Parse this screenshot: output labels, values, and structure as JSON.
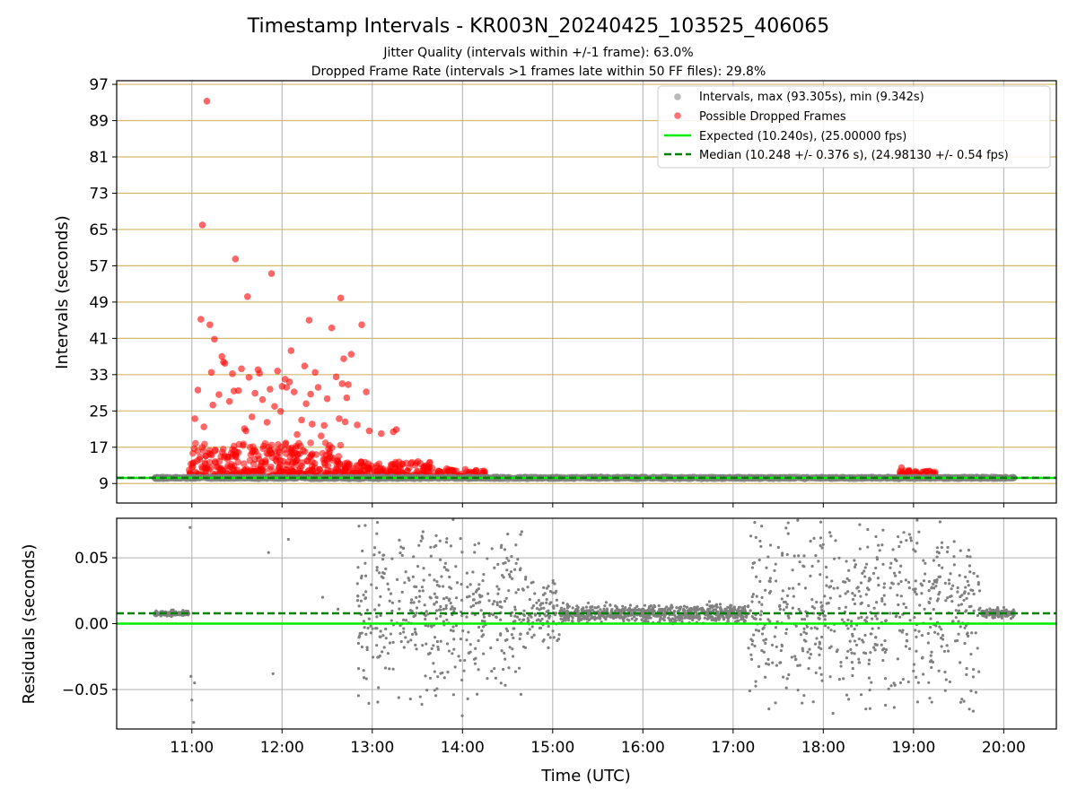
{
  "title": "Timestamp Intervals - KR003N_20240425_103525_406065",
  "subtitle_1": "Jitter Quality (intervals within +/-1 frame): 63.0%",
  "subtitle_2": "Dropped Frame Rate (intervals >1 frames late within 50 FF files): 29.8%",
  "colors": {
    "intervals": "#808080",
    "dropped": "#ff0000",
    "expected": "#00ee00",
    "median": "#008000",
    "hgrid_top": "#d4b86a",
    "grid": "#b0b0b0"
  },
  "chart_data": [
    {
      "type": "scatter",
      "panel": "top",
      "ylabel": "Intervals (seconds)",
      "y_ticks": [
        "9",
        "17",
        "25",
        "33",
        "41",
        "49",
        "57",
        "65",
        "73",
        "81",
        "89",
        "97"
      ],
      "ylim": [
        4.7,
        97.8
      ],
      "grid": true,
      "legend_position": "top-right",
      "legend": [
        {
          "label": "Intervals, max (93.305s), min (9.342s)",
          "kind": "point-grey"
        },
        {
          "label": "Possible Dropped Frames",
          "kind": "point-red"
        },
        {
          "label": "Expected (10.240s), (25.00000 fps)",
          "kind": "line-green"
        },
        {
          "label": "Median (10.248 +/- 0.376 s), (24.98130 +/- 0.54 fps)",
          "kind": "dash-darkgreen"
        }
      ],
      "reference_lines": {
        "expected": 10.24,
        "median": 10.248
      },
      "interval_summary": {
        "max": 93.305,
        "min": 9.342
      },
      "dropped_points": [
        {
          "x": "11:02",
          "y": 23.3
        },
        {
          "x": "11:04",
          "y": 29.6
        },
        {
          "x": "11:06",
          "y": 45.2
        },
        {
          "x": "11:07",
          "y": 66.0
        },
        {
          "x": "11:08",
          "y": 21.5
        },
        {
          "x": "11:10",
          "y": 93.3
        },
        {
          "x": "11:12",
          "y": 44.0
        },
        {
          "x": "11:13",
          "y": 33.5
        },
        {
          "x": "11:14",
          "y": 26.3
        },
        {
          "x": "11:15",
          "y": 40.8
        },
        {
          "x": "11:18",
          "y": 28.6
        },
        {
          "x": "11:20",
          "y": 37.0
        },
        {
          "x": "11:21",
          "y": 35.8
        },
        {
          "x": "11:22",
          "y": 35.5
        },
        {
          "x": "11:25",
          "y": 27.1
        },
        {
          "x": "11:27",
          "y": 33.2
        },
        {
          "x": "11:28",
          "y": 29.4
        },
        {
          "x": "11:29",
          "y": 58.5
        },
        {
          "x": "11:31",
          "y": 29.5
        },
        {
          "x": "11:33",
          "y": 34.3
        },
        {
          "x": "11:35",
          "y": 21.1
        },
        {
          "x": "11:36",
          "y": 20.6
        },
        {
          "x": "11:37",
          "y": 50.2
        },
        {
          "x": "11:38",
          "y": 32.4
        },
        {
          "x": "11:40",
          "y": 23.7
        },
        {
          "x": "11:42",
          "y": 28.9
        },
        {
          "x": "11:44",
          "y": 34.1
        },
        {
          "x": "11:45",
          "y": 33.3
        },
        {
          "x": "11:47",
          "y": 27.5
        },
        {
          "x": "11:50",
          "y": 22.5
        },
        {
          "x": "11:52",
          "y": 29.8
        },
        {
          "x": "11:53",
          "y": 55.3
        },
        {
          "x": "11:55",
          "y": 26.0
        },
        {
          "x": "11:57",
          "y": 33.8
        },
        {
          "x": "11:59",
          "y": 24.9
        },
        {
          "x": "12:00",
          "y": 30.4
        },
        {
          "x": "12:02",
          "y": 32.0
        },
        {
          "x": "12:03",
          "y": 30.2
        },
        {
          "x": "12:05",
          "y": 31.4
        },
        {
          "x": "12:06",
          "y": 38.3
        },
        {
          "x": "12:08",
          "y": 29.2
        },
        {
          "x": "12:10",
          "y": 19.8
        },
        {
          "x": "12:13",
          "y": 23.0
        },
        {
          "x": "12:15",
          "y": 34.9
        },
        {
          "x": "12:16",
          "y": 26.6
        },
        {
          "x": "12:18",
          "y": 45.0
        },
        {
          "x": "12:19",
          "y": 28.7
        },
        {
          "x": "12:20",
          "y": 22.1
        },
        {
          "x": "12:22",
          "y": 33.5
        },
        {
          "x": "12:24",
          "y": 30.2
        },
        {
          "x": "12:26",
          "y": 19.5
        },
        {
          "x": "12:28",
          "y": 21.8
        },
        {
          "x": "12:30",
          "y": 27.7
        },
        {
          "x": "12:33",
          "y": 43.3
        },
        {
          "x": "12:36",
          "y": 32.5
        },
        {
          "x": "12:38",
          "y": 23.3
        },
        {
          "x": "12:39",
          "y": 49.9
        },
        {
          "x": "12:40",
          "y": 31.0
        },
        {
          "x": "12:41",
          "y": 36.5
        },
        {
          "x": "12:42",
          "y": 22.6
        },
        {
          "x": "12:43",
          "y": 27.9
        },
        {
          "x": "12:44",
          "y": 30.8
        },
        {
          "x": "12:46",
          "y": 37.5
        },
        {
          "x": "12:50",
          "y": 21.9
        },
        {
          "x": "12:53",
          "y": 44.0
        },
        {
          "x": "12:56",
          "y": 29.2
        },
        {
          "x": "12:58",
          "y": 20.6
        },
        {
          "x": "13:06",
          "y": 20.0
        },
        {
          "x": "13:14",
          "y": 20.4
        },
        {
          "x": "13:16",
          "y": 20.9
        },
        {
          "x": "18:52",
          "y": 12.5
        },
        {
          "x": "18:57",
          "y": 11.9
        }
      ],
      "dense_clusters": [
        {
          "series": "Possible Dropped Frames",
          "x_start": "10:58",
          "x_end": "12:40",
          "y_min": 10.5,
          "y_max": 18.0
        },
        {
          "series": "Possible Dropped Frames",
          "x_start": "12:40",
          "x_end": "13:40",
          "y_min": 10.3,
          "y_max": 14.0
        },
        {
          "series": "Possible Dropped Frames",
          "x_start": "13:40",
          "x_end": "14:15",
          "y_min": 10.3,
          "y_max": 12.3
        },
        {
          "series": "Possible Dropped Frames",
          "x_start": "18:50",
          "x_end": "19:15",
          "y_min": 10.3,
          "y_max": 11.8
        },
        {
          "series": "Intervals",
          "x_start": "10:35",
          "x_end": "20:07",
          "y_min": 9.8,
          "y_max": 11.3
        }
      ]
    },
    {
      "type": "scatter",
      "panel": "bottom",
      "xlabel": "Time (UTC)",
      "ylabel": "Residuals (seconds)",
      "x_ticks": [
        "11:00",
        "12:00",
        "13:00",
        "14:00",
        "15:00",
        "16:00",
        "17:00",
        "18:00",
        "19:00",
        "20:00"
      ],
      "xlim": [
        "10:10",
        "20:35"
      ],
      "y_ticks": [
        "0.05",
        "0.00",
        "−0.05"
      ],
      "ylim": [
        -0.08,
        0.08
      ],
      "grid": true,
      "reference_lines": {
        "expected": 0.0,
        "median": 0.0078
      },
      "residual_bands": [
        {
          "x_start": "10:35",
          "x_end": "10:58",
          "spread": 0.002
        },
        {
          "x_start": "10:58",
          "x_end": "12:50",
          "spread": 0.0
        },
        {
          "x_start": "12:50",
          "x_end": "14:40",
          "spread": 0.08
        },
        {
          "x_start": "14:40",
          "x_end": "15:05",
          "spread": 0.03
        },
        {
          "x_start": "15:05",
          "x_end": "17:10",
          "spread": 0.006
        },
        {
          "x_start": "17:10",
          "x_end": "19:45",
          "spread": 0.08
        },
        {
          "x_start": "19:45",
          "x_end": "20:07",
          "spread": 0.003
        }
      ]
    }
  ]
}
